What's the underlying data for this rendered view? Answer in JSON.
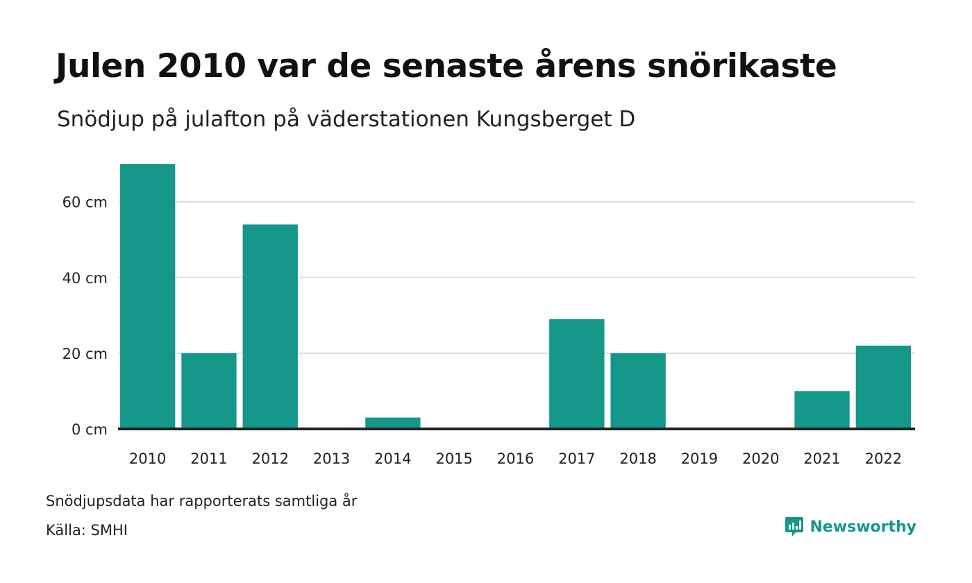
{
  "header": {
    "title": "Julen 2010 var de senaste årens snörikaste",
    "subtitle": "Snödjup på julafton på väderstationen Kungsberget D"
  },
  "footer": {
    "note": "Snödjupsdata har rapporterats samtliga år",
    "source": "Källa: SMHI",
    "brand": "Newsworthy"
  },
  "colors": {
    "bar": "#15978a",
    "grid": "#dddddd",
    "baseline": "#222222",
    "brand": "#15978a"
  },
  "chart_data": {
    "type": "bar",
    "categories": [
      "2010",
      "2011",
      "2012",
      "2013",
      "2014",
      "2015",
      "2016",
      "2017",
      "2018",
      "2019",
      "2020",
      "2021",
      "2022"
    ],
    "values": [
      70,
      20,
      54,
      0,
      3,
      0,
      0,
      29,
      20,
      0,
      0,
      10,
      22
    ],
    "unit": "cm",
    "yticks": [
      0,
      20,
      40,
      60
    ],
    "ytick_labels": [
      "0 cm",
      "20 cm",
      "40 cm",
      "60 cm"
    ],
    "ylim": [
      0,
      70
    ],
    "grid": true,
    "legend": "none"
  }
}
